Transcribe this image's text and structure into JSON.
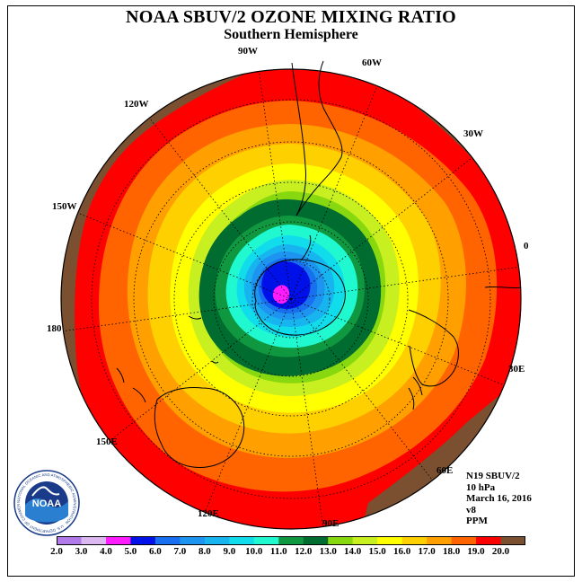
{
  "title": "NOAA SBUV/2 OZONE MIXING RATIO",
  "subtitle": "Southern Hemisphere",
  "longitude_labels": [
    {
      "text": "90W",
      "name": "lon-label-90w"
    },
    {
      "text": "60W",
      "name": "lon-label-60w"
    },
    {
      "text": "120W",
      "name": "lon-label-120w"
    },
    {
      "text": "30W",
      "name": "lon-label-30w"
    },
    {
      "text": "150W",
      "name": "lon-label-150w"
    },
    {
      "text": "0",
      "name": "lon-label-0"
    },
    {
      "text": "180",
      "name": "lon-label-180"
    },
    {
      "text": "30E",
      "name": "lon-label-30e"
    },
    {
      "text": "150E",
      "name": "lon-label-150e"
    },
    {
      "text": "60E",
      "name": "lon-label-60e"
    },
    {
      "text": "120E",
      "name": "lon-label-120e"
    },
    {
      "text": "90E",
      "name": "lon-label-90e"
    }
  ],
  "info": {
    "satellite": "N19 SBUV/2",
    "level": "10 hPa",
    "date": "March 16, 2016",
    "version": "v8",
    "units": "PPM"
  },
  "logo": {
    "text": "NOAA",
    "ring_text": "NATIONAL OCEANIC AND ATMOSPHERIC ADMINISTRATION · U.S. DEPARTMENT OF COMMERCE"
  },
  "colorbar": {
    "labels": [
      "2.0",
      "3.0",
      "4.0",
      "5.0",
      "6.0",
      "7.0",
      "8.0",
      "9.0",
      "10.0",
      "11.0",
      "12.0",
      "13.0",
      "14.0",
      "15.0",
      "16.0",
      "17.0",
      "18.0",
      "19.0",
      "20.0"
    ],
    "colors": [
      "#b07ae8",
      "#dcb8f0",
      "#ff1cff",
      "#0010e8",
      "#1870f0",
      "#1c94f0",
      "#18b4f0",
      "#10dcec",
      "#20f8d0",
      "#109840",
      "#006c30",
      "#88d810",
      "#c8f020",
      "#ffff00",
      "#ffd000",
      "#ffa000",
      "#ff6400",
      "#ff0000",
      "#7a5030"
    ]
  },
  "colors": {
    "land_outline": "#000000",
    "grid": "#000000",
    "outside": "#ffffff"
  }
}
